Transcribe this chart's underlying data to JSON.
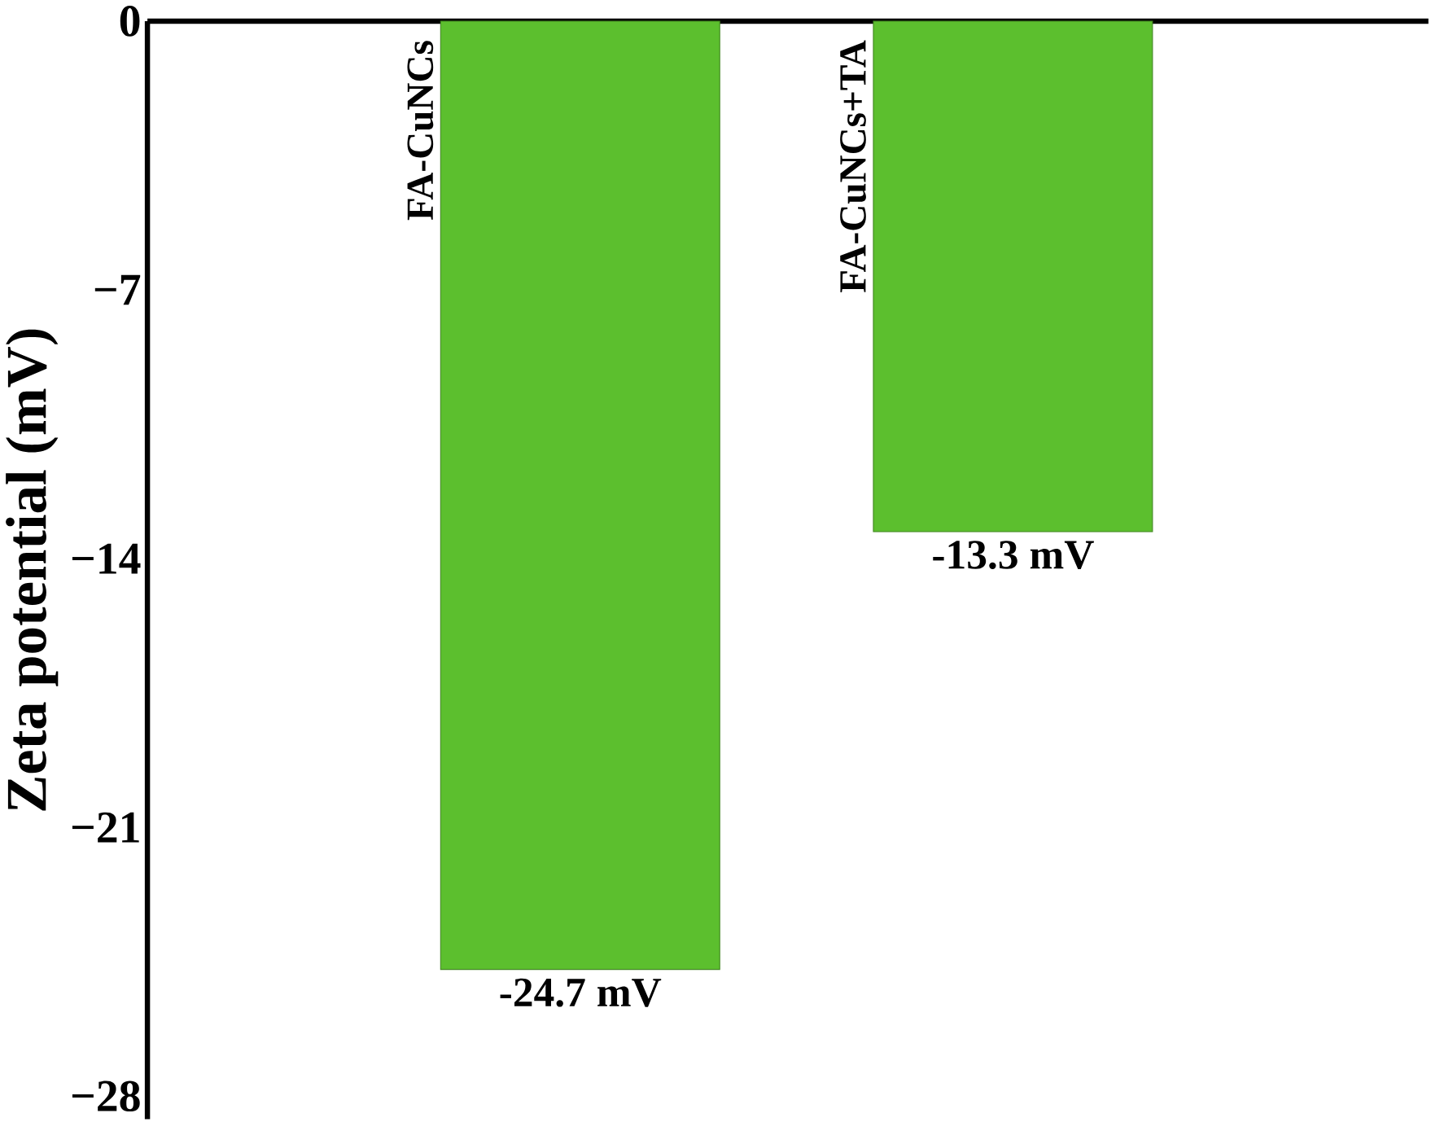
{
  "chart_data": {
    "type": "bar",
    "ylabel": "Zeta potential (mV)",
    "categories": [
      "FA-CuNCs",
      "FA-CuNCs+TA"
    ],
    "values": [
      -24.7,
      -13.3
    ],
    "value_labels": [
      "-24.7 mV",
      "-13.3 mV"
    ],
    "color": "#5cbf2e",
    "ylim": [
      -28.6,
      0
    ],
    "yticks": [
      0,
      {
        "value": -7,
        "label": "−7"
      },
      {
        "value": -14,
        "label": "−14"
      },
      {
        "value": -21,
        "label": "−21"
      },
      {
        "value": -28,
        "label": "−28"
      }
    ],
    "tick_labels": "y"
  }
}
